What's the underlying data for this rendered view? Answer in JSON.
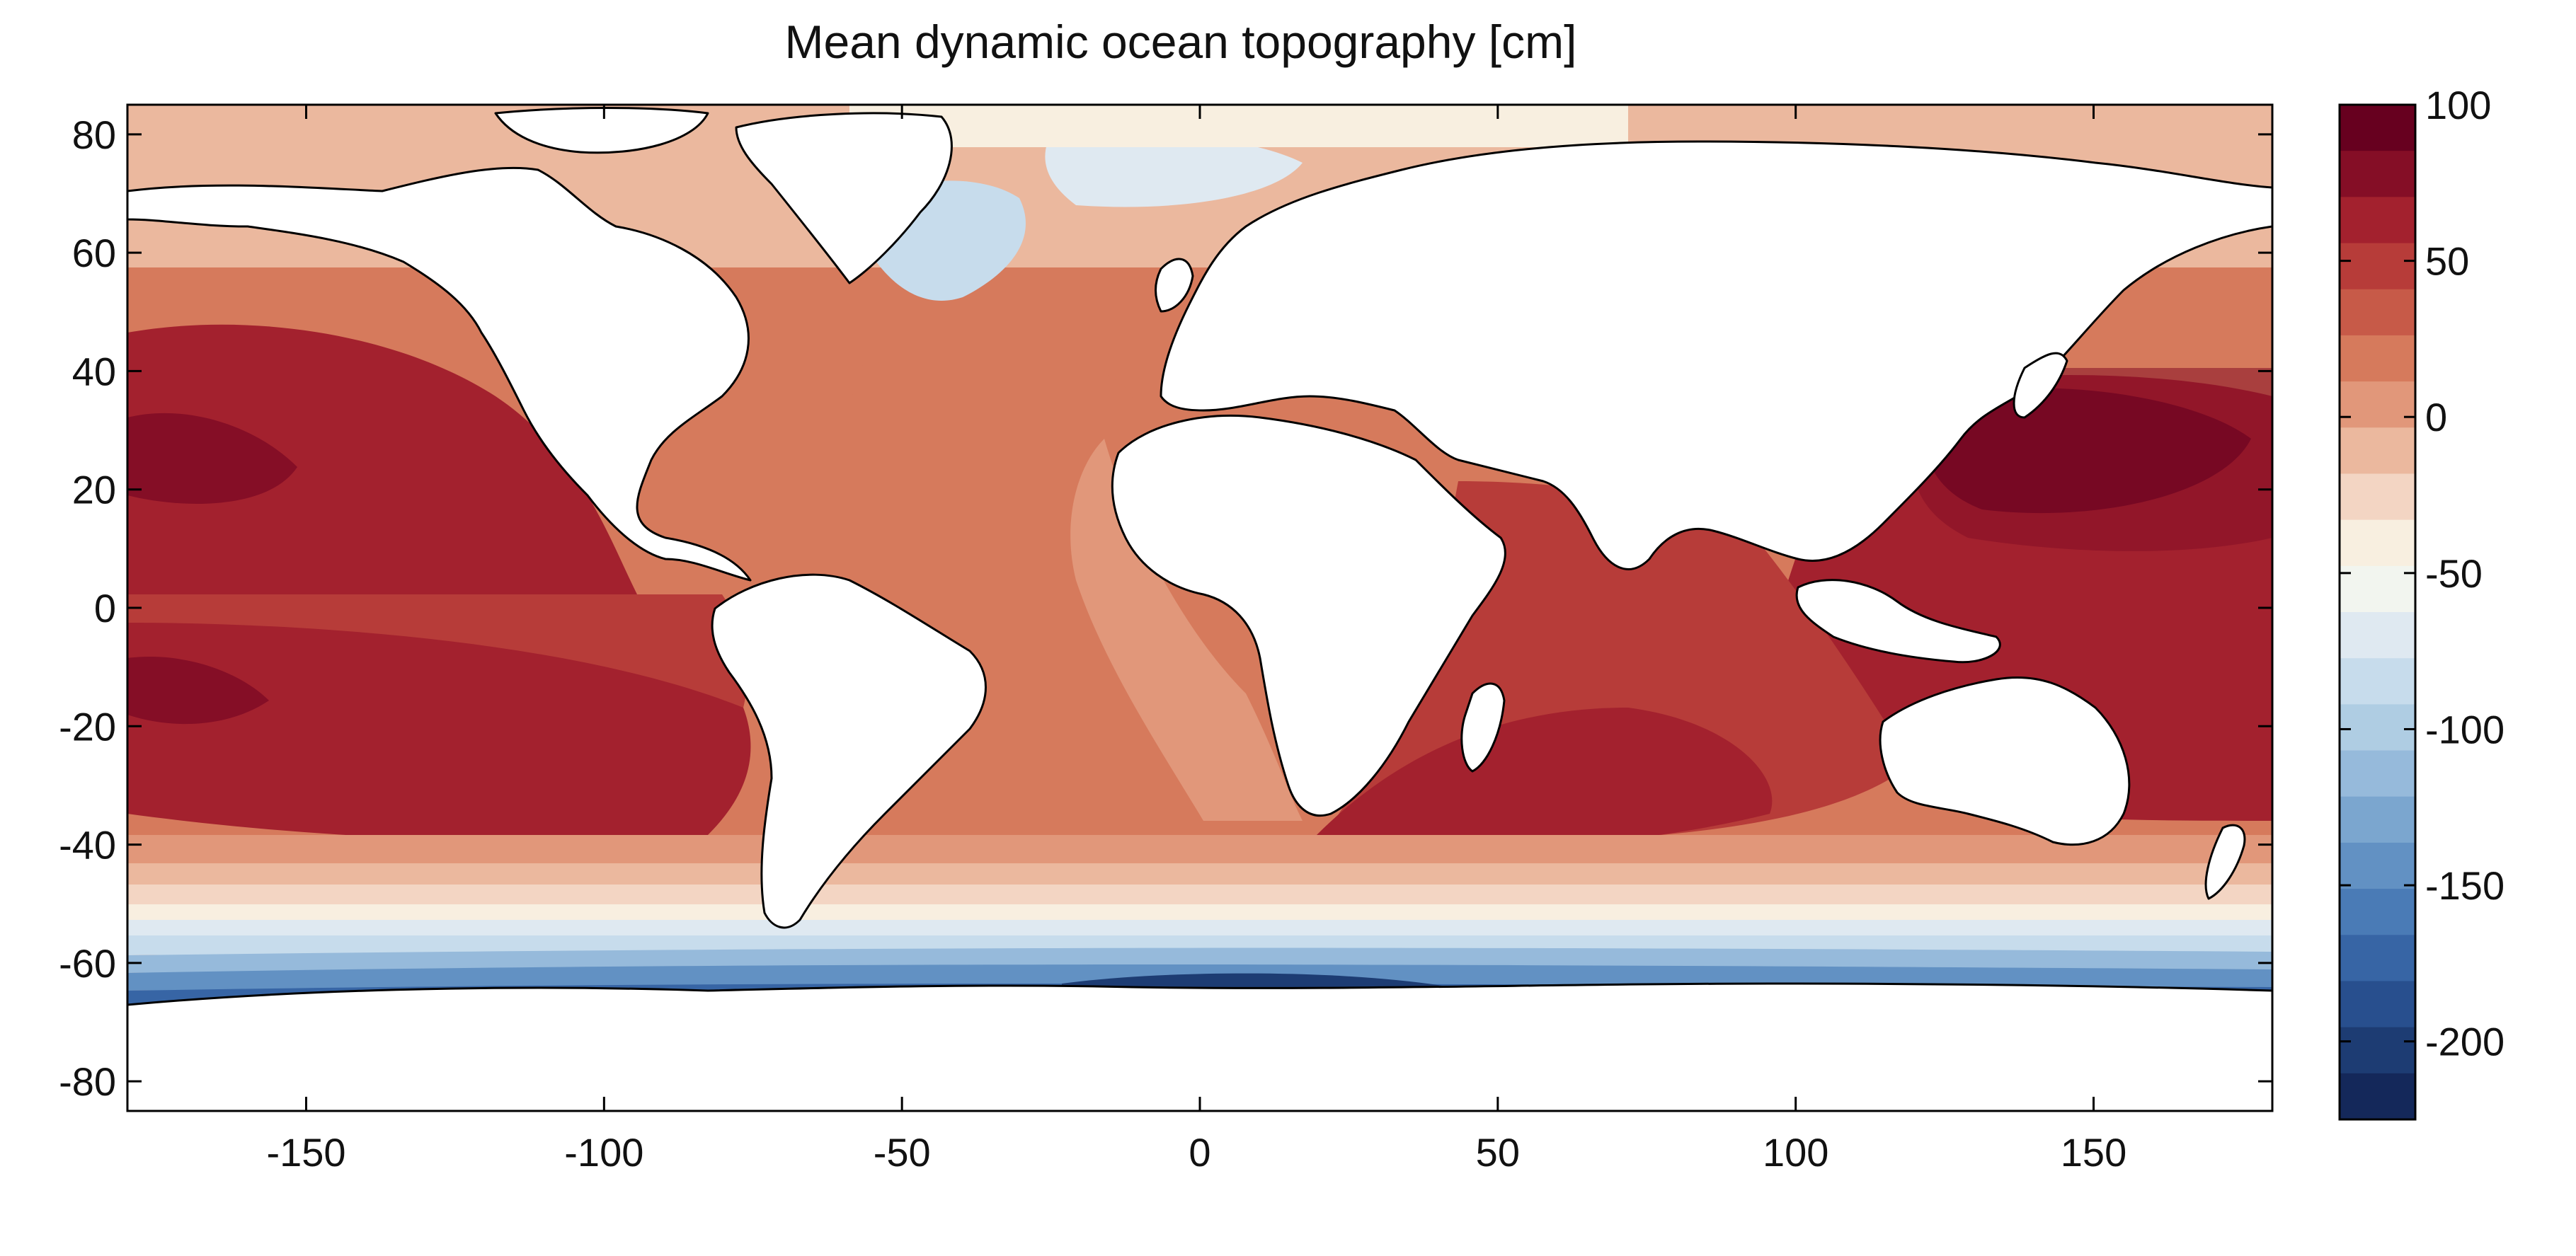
{
  "title": "Mean dynamic ocean topography [cm]",
  "map": {
    "projection": "equirectangular",
    "lon_range": [
      -180,
      180
    ],
    "lat_range": [
      -85,
      85
    ],
    "x_ticks": [
      "-150",
      "-100",
      "-50",
      "0",
      "50",
      "100",
      "150"
    ],
    "x_tick_values": [
      -150,
      -100,
      -50,
      0,
      50,
      100,
      150
    ],
    "y_ticks": [
      "80",
      "60",
      "40",
      "20",
      "0",
      "-20",
      "-40",
      "-60",
      "-80"
    ],
    "y_tick_values": [
      80,
      60,
      40,
      20,
      0,
      -20,
      -40,
      -60,
      -80
    ],
    "land_color": "#ffffff",
    "coastline_color": "#000000"
  },
  "colorbar": {
    "range": [
      -225,
      100
    ],
    "step": 12.5,
    "tick_labels": [
      "100",
      "50",
      "0",
      "-50",
      "-100",
      "-150",
      "-200"
    ],
    "tick_values": [
      100,
      50,
      0,
      -50,
      -100,
      -150,
      -200
    ],
    "colors": [
      "#67001f",
      "#850e26",
      "#a3212e",
      "#b73c39",
      "#c75a48",
      "#d67a5c",
      "#e1977a",
      "#ebb89e",
      "#f3d5c3",
      "#f8efe0",
      "#f2f5ef",
      "#dfe9f1",
      "#c7dcec",
      "#afcde3",
      "#96badb",
      "#7ba6cf",
      "#6291c3",
      "#4a7bb6",
      "#3765a5",
      "#284f8e",
      "#1d3c73",
      "#14285a"
    ]
  }
}
